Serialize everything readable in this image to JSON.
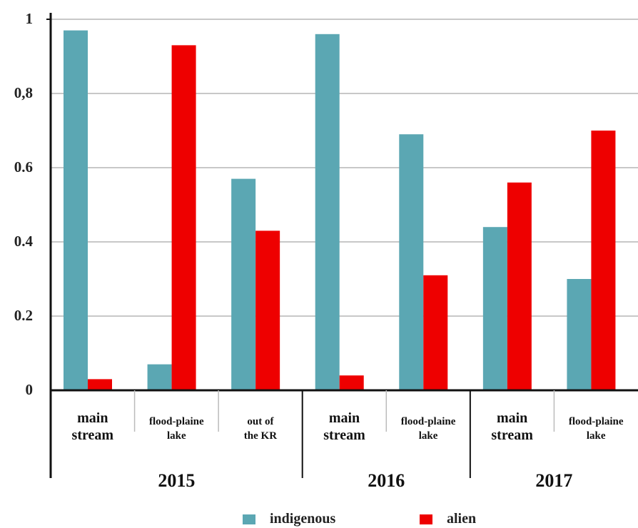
{
  "chart_data": {
    "type": "bar",
    "ylim": [
      0,
      1
    ],
    "yticks": [
      {
        "value": 0,
        "label": "0"
      },
      {
        "value": 0.2,
        "label": "0.2"
      },
      {
        "value": 0.4,
        "label": "0.4"
      },
      {
        "value": 0.6,
        "label": "0.6"
      },
      {
        "value": 0.8,
        "label": "0,8"
      },
      {
        "value": 1,
        "label": "1"
      }
    ],
    "grid": true,
    "categories": [
      [
        "main",
        "stream"
      ],
      [
        "flood-plaine",
        "lake"
      ],
      [
        "out of",
        "the KR"
      ],
      [
        "main",
        "stream"
      ],
      [
        "flood-plaine",
        "lake"
      ],
      [
        "main",
        "stream"
      ],
      [
        "flood-plaine",
        "lake"
      ]
    ],
    "groups": [
      {
        "label": "2015",
        "categories": [
          0,
          1,
          2
        ]
      },
      {
        "label": "2016",
        "categories": [
          3,
          4
        ]
      },
      {
        "label": "2017",
        "categories": [
          5,
          6
        ]
      }
    ],
    "series": [
      {
        "name": "indigenous",
        "color": "#5ba7b3",
        "values": [
          0.97,
          0.07,
          0.57,
          0.96,
          0.69,
          0.44,
          0.3
        ]
      },
      {
        "name": "alien",
        "color": "#ee0000",
        "values": [
          0.03,
          0.93,
          0.43,
          0.04,
          0.31,
          0.56,
          0.7
        ]
      }
    ],
    "legend_position": "bottom"
  }
}
